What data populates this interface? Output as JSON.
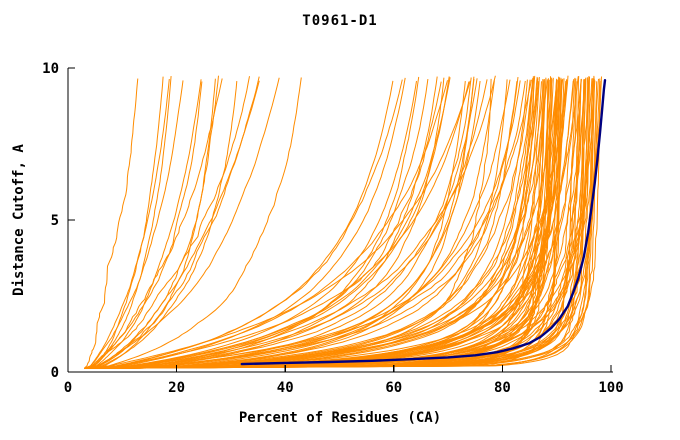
{
  "chart_data": {
    "type": "line",
    "title": "T0961-D1",
    "xlabel": "Percent of Residues (CA)",
    "ylabel": "Distance Cutoff, A",
    "xlim": [
      0,
      100
    ],
    "ylim": [
      0,
      10
    ],
    "x_ticks": [
      0,
      20,
      40,
      60,
      80,
      100
    ],
    "y_ticks": [
      0,
      5,
      10
    ],
    "grid": false,
    "legend": "none",
    "colors": {
      "ensemble": "#ff8c00",
      "highlight": "#000080",
      "axis": "#000000",
      "background": "#ffffff"
    },
    "highlight_series": {
      "name": "best-model-curve",
      "color": "#000080",
      "stroke_width": 2.4,
      "points": [
        [
          32,
          0.26
        ],
        [
          40,
          0.3
        ],
        [
          48,
          0.33
        ],
        [
          56,
          0.37
        ],
        [
          63,
          0.42
        ],
        [
          70,
          0.48
        ],
        [
          75,
          0.55
        ],
        [
          79,
          0.65
        ],
        [
          82,
          0.78
        ],
        [
          85,
          0.95
        ],
        [
          87,
          1.15
        ],
        [
          89,
          1.45
        ],
        [
          90.5,
          1.75
        ],
        [
          92,
          2.15
        ],
        [
          93,
          2.6
        ],
        [
          94,
          3.1
        ],
        [
          95,
          3.8
        ],
        [
          95.8,
          4.6
        ],
        [
          96.4,
          5.4
        ],
        [
          97,
          6.2
        ],
        [
          97.5,
          7.0
        ],
        [
          98,
          7.9
        ],
        [
          98.4,
          8.7
        ],
        [
          98.7,
          9.3
        ],
        [
          98.9,
          9.6
        ]
      ]
    },
    "ensemble": {
      "name": "server-model-curves",
      "color": "#ff8c00",
      "stroke_width": 1.0,
      "count": 130,
      "seed": 1337,
      "x_start": 3,
      "y_start": 0.2,
      "y_end_range": [
        9.55,
        9.75
      ],
      "wiggle": 1.8,
      "groups": [
        {
          "count": 78,
          "tau": [
            0.05,
            0.6
          ],
          "pmax": [
            88,
            99.5
          ],
          "gamma": [
            0.75,
            1.25
          ]
        },
        {
          "count": 36,
          "tau": [
            0.5,
            3.0
          ],
          "pmax": [
            72,
            97
          ],
          "gamma": [
            0.75,
            1.2
          ]
        },
        {
          "count": 16,
          "tau": [
            3.0,
            10.0
          ],
          "pmax": [
            20,
            60
          ],
          "gamma": [
            0.7,
            1.1
          ]
        }
      ]
    }
  }
}
